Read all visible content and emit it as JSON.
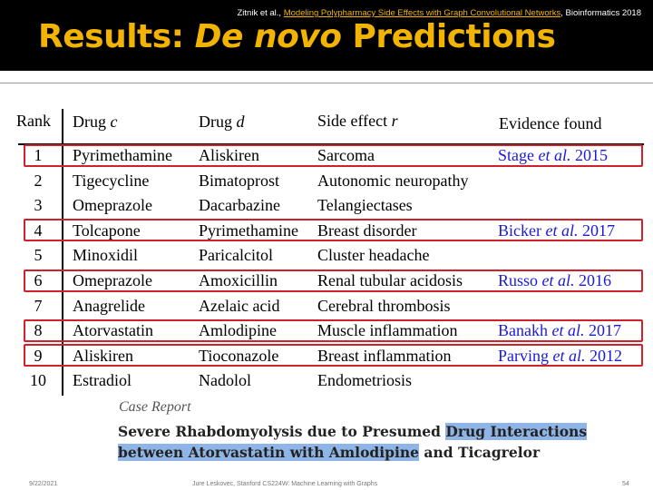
{
  "header": {
    "citation_prefix": "Zitnik et al., ",
    "citation_link": "Modeling Polypharmacy Side Effects with Graph Convolutional Networks",
    "citation_suffix": ", Bioinformatics 2018",
    "title_prefix": "Results: ",
    "title_italic": "De novo",
    "title_suffix": " Predictions"
  },
  "table": {
    "headers": {
      "rank": "Rank",
      "drug_c_prefix": "Drug ",
      "drug_c_var": "c",
      "drug_d_prefix": "Drug ",
      "drug_d_var": "d",
      "side_effect_prefix": "Side effect ",
      "side_effect_var": "r",
      "evidence": "Evidence found"
    },
    "rows": [
      {
        "rank": "1",
        "drug_c": "Pyrimethamine",
        "drug_d": "Aliskiren",
        "side_effect": "Sarcoma",
        "ev_author": "Stage ",
        "ev_etal": "et al.",
        "ev_year": " 2015",
        "highlighted": true
      },
      {
        "rank": "2",
        "drug_c": "Tigecycline",
        "drug_d": "Bimatoprost",
        "side_effect": "Autonomic neuropathy",
        "ev_author": "",
        "ev_etal": "",
        "ev_year": "",
        "highlighted": false
      },
      {
        "rank": "3",
        "drug_c": "Omeprazole",
        "drug_d": "Dacarbazine",
        "side_effect": "Telangiectases",
        "ev_author": "",
        "ev_etal": "",
        "ev_year": "",
        "highlighted": false
      },
      {
        "rank": "4",
        "drug_c": "Tolcapone",
        "drug_d": "Pyrimethamine",
        "side_effect": "Breast disorder",
        "ev_author": "Bicker ",
        "ev_etal": "et al.",
        "ev_year": " 2017",
        "highlighted": true
      },
      {
        "rank": "5",
        "drug_c": "Minoxidil",
        "drug_d": "Paricalcitol",
        "side_effect": "Cluster headache",
        "ev_author": "",
        "ev_etal": "",
        "ev_year": "",
        "highlighted": false
      },
      {
        "rank": "6",
        "drug_c": "Omeprazole",
        "drug_d": "Amoxicillin",
        "side_effect": "Renal tubular acidosis",
        "ev_author": "Russo ",
        "ev_etal": "et al.",
        "ev_year": " 2016",
        "highlighted": true
      },
      {
        "rank": "7",
        "drug_c": "Anagrelide",
        "drug_d": "Azelaic acid",
        "side_effect": "Cerebral thrombosis",
        "ev_author": "",
        "ev_etal": "",
        "ev_year": "",
        "highlighted": false
      },
      {
        "rank": "8",
        "drug_c": "Atorvastatin",
        "drug_d": "Amlodipine",
        "side_effect": "Muscle inflammation",
        "ev_author": "Banakh ",
        "ev_etal": "et al.",
        "ev_year": " 2017",
        "highlighted": true
      },
      {
        "rank": "9",
        "drug_c": "Aliskiren",
        "drug_d": "Tioconazole",
        "side_effect": "Breast inflammation",
        "ev_author": "Parving ",
        "ev_etal": "et al.",
        "ev_year": " 2012",
        "highlighted": true
      },
      {
        "rank": "10",
        "drug_c": "Estradiol",
        "drug_d": "Nadolol",
        "side_effect": "Endometriosis",
        "ev_author": "",
        "ev_etal": "",
        "ev_year": "",
        "highlighted": false
      }
    ]
  },
  "case_report": {
    "label": "Case Report",
    "line1_plain": "Severe Rhabdomyolysis due to Presumed ",
    "line1_mark": "Drug Interactions",
    "line2_mark": "between Atorvastatin with Amlodipine",
    "line2_plain": " and Ticagrelor"
  },
  "footer": {
    "date": "9/22/2021",
    "credit": "Jure Leskovec, Stanford CS224W: Machine Learning with Graphs",
    "page": "54"
  },
  "colors": {
    "title": "#f2b400",
    "evidence": "#1a1adb",
    "highlight_box": "#d0202a",
    "case_highlight": "#8fb4e6"
  }
}
